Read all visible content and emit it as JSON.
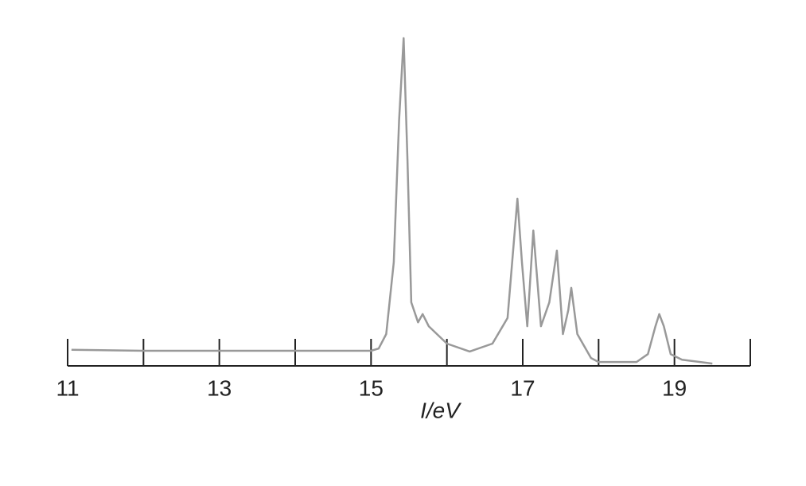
{
  "chart_data": {
    "type": "line",
    "x_label": "I/eV",
    "xlim": [
      11,
      20
    ],
    "xticks": [
      11,
      13,
      15,
      17,
      19
    ],
    "xminor_ticks": [
      12,
      14,
      16,
      18,
      20
    ],
    "ylim": [
      0,
      100
    ],
    "color": "#999999",
    "x": [
      11.05,
      12,
      13,
      14,
      15,
      15.1,
      15.2,
      15.3,
      15.37,
      15.43,
      15.48,
      15.53,
      15.62,
      15.68,
      15.76,
      16,
      16.3,
      16.6,
      16.8,
      16.93,
      16.99,
      17.06,
      17.14,
      17.24,
      17.35,
      17.45,
      17.53,
      17.6,
      17.64,
      17.72,
      17.9,
      18,
      18.5,
      18.65,
      18.75,
      18.8,
      18.86,
      18.95,
      19.1,
      19.5
    ],
    "values": [
      4.9,
      4.6,
      4.6,
      4.6,
      4.6,
      5.3,
      9.7,
      31.6,
      75,
      100,
      63,
      19.4,
      13.3,
      15.8,
      12.1,
      6.8,
      4.4,
      6.8,
      14.6,
      51,
      31.6,
      12.1,
      41.3,
      12.1,
      19.4,
      35.2,
      9.7,
      17,
      23.8,
      9.7,
      2.4,
      1.2,
      1.2,
      3.6,
      12.1,
      15.8,
      12.1,
      3.6,
      1.9,
      0.7
    ]
  }
}
